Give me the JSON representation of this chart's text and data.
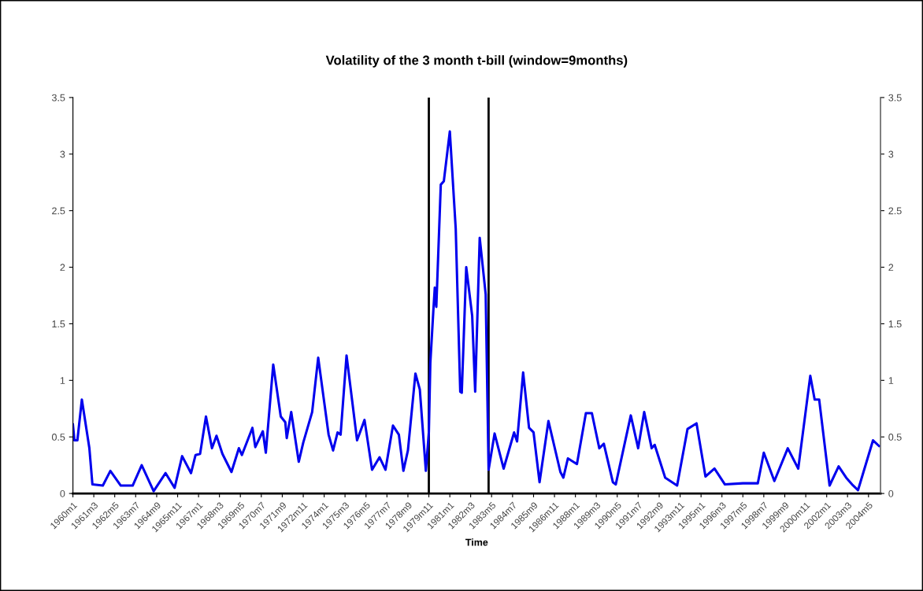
{
  "chart_data": {
    "type": "line",
    "title": "Volatility of the 3 month t-bill (window=9months)",
    "xlabel": "Time",
    "x": [
      "1960-01",
      "1960-02",
      "1960-04",
      "1960-07",
      "1960-12",
      "1961-02",
      "1961-09",
      "1962-02",
      "1962-09",
      "1963-05",
      "1963-11",
      "1964-07",
      "1965-03",
      "1965-09",
      "1966-02",
      "1966-08",
      "1966-11",
      "1967-02",
      "1967-06",
      "1967-10",
      "1968-01",
      "1968-05",
      "1968-11",
      "1969-04",
      "1969-06",
      "1970-01",
      "1970-03",
      "1970-08",
      "1970-10",
      "1971-03",
      "1971-08",
      "1971-11",
      "1971-12",
      "1972-03",
      "1972-08",
      "1972-11",
      "1973-05",
      "1973-09",
      "1974-04",
      "1974-07",
      "1974-10",
      "1974-12",
      "1975-04",
      "1975-11",
      "1976-04",
      "1976-09",
      "1977-02",
      "1977-06",
      "1977-11",
      "1978-03",
      "1978-06",
      "1978-09",
      "1979-02",
      "1979-05",
      "1979-09",
      "1979-11",
      "1979-12",
      "1980-02",
      "1980-03",
      "1980-04",
      "1980-07",
      "1980-09",
      "1981-01",
      "1981-05",
      "1981-08",
      "1981-09",
      "1981-12",
      "1982-04",
      "1982-06",
      "1982-09",
      "1983-01",
      "1983-03",
      "1983-07",
      "1984-01",
      "1984-08",
      "1984-10",
      "1985-02",
      "1985-06",
      "1985-09",
      "1986-01",
      "1986-07",
      "1987-03",
      "1987-05",
      "1987-08",
      "1988-02",
      "1988-08",
      "1988-12",
      "1989-05",
      "1989-08",
      "1990-02",
      "1990-04",
      "1991-02",
      "1991-07",
      "1991-11",
      "1992-04",
      "1992-06",
      "1993-01",
      "1993-09",
      "1994-04",
      "1994-10",
      "1995-04",
      "1995-10",
      "1996-05",
      "1997-05",
      "1998-03",
      "1998-07",
      "1999-02",
      "1999-11",
      "2000-06",
      "2001-02",
      "2001-05",
      "2001-08",
      "2002-03",
      "2002-09",
      "2003-02",
      "2003-06",
      "2003-10",
      "2004-08",
      "2004-12"
    ],
    "series": [
      {
        "color": "#0000ee",
        "values": [
          0.61,
          0.47,
          0.47,
          0.83,
          0.4,
          0.08,
          0.07,
          0.2,
          0.07,
          0.07,
          0.25,
          0.02,
          0.18,
          0.05,
          0.33,
          0.18,
          0.34,
          0.35,
          0.68,
          0.4,
          0.51,
          0.35,
          0.19,
          0.4,
          0.34,
          0.58,
          0.41,
          0.55,
          0.36,
          1.14,
          0.68,
          0.63,
          0.49,
          0.72,
          0.28,
          0.45,
          0.72,
          1.2,
          0.52,
          0.38,
          0.54,
          0.52,
          1.22,
          0.47,
          0.65,
          0.21,
          0.32,
          0.21,
          0.6,
          0.52,
          0.2,
          0.38,
          1.06,
          0.92,
          0.2,
          0.54,
          1.15,
          1.62,
          1.82,
          1.65,
          2.73,
          2.76,
          3.2,
          2.34,
          0.9,
          0.89,
          2.0,
          1.57,
          0.9,
          2.26,
          1.76,
          0.21,
          0.53,
          0.22,
          0.54,
          0.46,
          1.07,
          0.58,
          0.54,
          0.1,
          0.64,
          0.19,
          0.14,
          0.31,
          0.26,
          0.71,
          0.71,
          0.4,
          0.44,
          0.1,
          0.08,
          0.69,
          0.4,
          0.72,
          0.4,
          0.43,
          0.14,
          0.07,
          0.57,
          0.62,
          0.15,
          0.22,
          0.08,
          0.09,
          0.09,
          0.36,
          0.11,
          0.4,
          0.22,
          1.04,
          0.83,
          0.83,
          0.07,
          0.24,
          0.14,
          0.08,
          0.03,
          0.47,
          0.42
        ]
      }
    ],
    "xlim": [
      "1960-01",
      "2005-01"
    ],
    "xticks": [
      {
        "value": "1960-01",
        "label": "1960m1"
      },
      {
        "value": "1961-03",
        "label": "1961m3"
      },
      {
        "value": "1962-05",
        "label": "1962m5"
      },
      {
        "value": "1963-07",
        "label": "1963m7"
      },
      {
        "value": "1964-09",
        "label": "1964m9"
      },
      {
        "value": "1965-11",
        "label": "1965m11"
      },
      {
        "value": "1967-01",
        "label": "1967m1"
      },
      {
        "value": "1968-03",
        "label": "1968m3"
      },
      {
        "value": "1969-05",
        "label": "1969m5"
      },
      {
        "value": "1970-07",
        "label": "1970m7"
      },
      {
        "value": "1971-09",
        "label": "1971m9"
      },
      {
        "value": "1972-11",
        "label": "1972m11"
      },
      {
        "value": "1974-01",
        "label": "1974m1"
      },
      {
        "value": "1975-03",
        "label": "1975m3"
      },
      {
        "value": "1976-05",
        "label": "1976m5"
      },
      {
        "value": "1977-07",
        "label": "1977m7"
      },
      {
        "value": "1978-09",
        "label": "1978m9"
      },
      {
        "value": "1979-11",
        "label": "1979m11"
      },
      {
        "value": "1981-01",
        "label": "1981m1"
      },
      {
        "value": "1982-03",
        "label": "1982m3"
      },
      {
        "value": "1983-05",
        "label": "1983m5"
      },
      {
        "value": "1984-07",
        "label": "1984m7"
      },
      {
        "value": "1985-09",
        "label": "1985m9"
      },
      {
        "value": "1986-11",
        "label": "1986m11"
      },
      {
        "value": "1988-01",
        "label": "1988m1"
      },
      {
        "value": "1989-03",
        "label": "1989m3"
      },
      {
        "value": "1990-05",
        "label": "1990m5"
      },
      {
        "value": "1991-07",
        "label": "1991m7"
      },
      {
        "value": "1992-09",
        "label": "1992m9"
      },
      {
        "value": "1993-11",
        "label": "1993m11"
      },
      {
        "value": "1995-01",
        "label": "1995m1"
      },
      {
        "value": "1996-03",
        "label": "1996m3"
      },
      {
        "value": "1997-05",
        "label": "1997m5"
      },
      {
        "value": "1998-07",
        "label": "1998m7"
      },
      {
        "value": "1999-09",
        "label": "1999m9"
      },
      {
        "value": "2000-11",
        "label": "2000m11"
      },
      {
        "value": "2002-01",
        "label": "2002m1"
      },
      {
        "value": "2003-03",
        "label": "2003m3"
      },
      {
        "value": "2004-05",
        "label": "2004m5"
      }
    ],
    "ylim": [
      0,
      3.5
    ],
    "yticks": [
      0,
      0.5,
      1,
      1.5,
      2,
      2.5,
      3,
      3.5
    ],
    "y2lim": [
      0,
      3.5
    ],
    "y2ticks": [
      0,
      0.5,
      1,
      1.5,
      2,
      2.5,
      3,
      3.5
    ],
    "ref_lines": [
      {
        "axis": "x",
        "value": "1979-11",
        "color": "#000000"
      },
      {
        "axis": "x",
        "value": "1983-03",
        "color": "#000000"
      }
    ],
    "grid": false,
    "marker": "none",
    "line_style": "solid"
  }
}
